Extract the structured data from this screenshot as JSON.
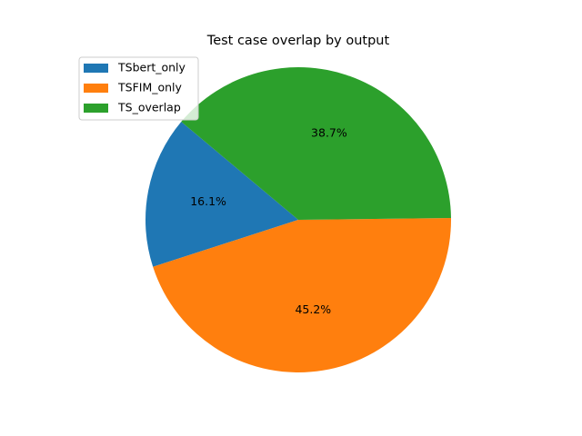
{
  "chart_data": {
    "type": "pie",
    "title": "Test case overlap by output",
    "slices": [
      {
        "label": "TSbert_only",
        "value": 16.1,
        "pct_label": "16.1%",
        "color": "#1f77b4"
      },
      {
        "label": "TSFIM_only",
        "value": 45.2,
        "pct_label": "45.2%",
        "color": "#ff7f0e"
      },
      {
        "label": "TS_overlap",
        "value": 38.7,
        "pct_label": "38.7%",
        "color": "#2ca02c"
      }
    ],
    "start_angle_deg": 140,
    "direction": "counterclockwise",
    "legend_position": "upper-left"
  }
}
